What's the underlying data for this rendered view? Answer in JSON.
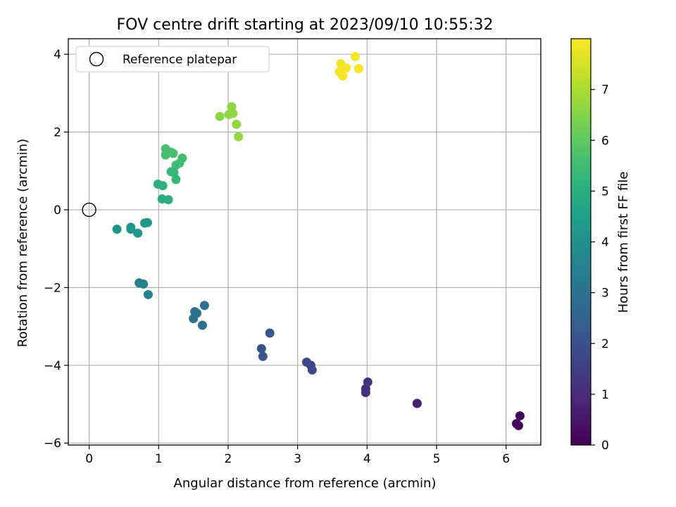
{
  "chart_data": {
    "type": "scatter",
    "title": "FOV centre drift starting at 2023/09/10 10:55:32",
    "xlabel": "Angular distance from reference (arcmin)",
    "ylabel": "Rotation from reference (arcmin)",
    "xlim": [
      -0.3,
      6.5
    ],
    "ylim": [
      -6.05,
      4.4
    ],
    "xticks": [
      0,
      1,
      2,
      3,
      4,
      5,
      6
    ],
    "yticks": [
      -6,
      -4,
      -2,
      0,
      2,
      4
    ],
    "grid": true,
    "legend": {
      "position": "top-left",
      "entries": [
        "Reference platepar"
      ]
    },
    "reference_point": {
      "x": 0,
      "y": 0,
      "label": "Reference platepar"
    },
    "colorbar": {
      "label": "Hours from first FF file",
      "min": 0,
      "max": 8,
      "ticks": [
        0,
        1,
        2,
        3,
        4,
        5,
        6,
        7
      ],
      "colormap": "viridis",
      "stops": [
        "#440154",
        "#482878",
        "#3e4989",
        "#31688e",
        "#26828e",
        "#1f9e89",
        "#35b779",
        "#6ece58",
        "#b5de2b",
        "#fde725"
      ]
    },
    "points": [
      {
        "x": 6.15,
        "y": -5.5,
        "hours": 0.02
      },
      {
        "x": 6.18,
        "y": -5.55,
        "hours": 0.05
      },
      {
        "x": 6.2,
        "y": -5.3,
        "hours": 0.1
      },
      {
        "x": 4.72,
        "y": -4.98,
        "hours": 0.7
      },
      {
        "x": 4.72,
        "y": -4.98,
        "hours": 0.72
      },
      {
        "x": 3.98,
        "y": -4.7,
        "hours": 1.1
      },
      {
        "x": 3.98,
        "y": -4.6,
        "hours": 1.13
      },
      {
        "x": 4.01,
        "y": -4.43,
        "hours": 1.17
      },
      {
        "x": 3.13,
        "y": -3.92,
        "hours": 1.7
      },
      {
        "x": 3.19,
        "y": -4.0,
        "hours": 1.72
      },
      {
        "x": 3.21,
        "y": -4.12,
        "hours": 1.74
      },
      {
        "x": 2.48,
        "y": -3.57,
        "hours": 2.1
      },
      {
        "x": 2.5,
        "y": -3.77,
        "hours": 2.12
      },
      {
        "x": 2.6,
        "y": -3.17,
        "hours": 2.14
      },
      {
        "x": 1.52,
        "y": -2.62,
        "hours": 2.9
      },
      {
        "x": 1.5,
        "y": -2.8,
        "hours": 2.92
      },
      {
        "x": 1.55,
        "y": -2.66,
        "hours": 2.94
      },
      {
        "x": 1.63,
        "y": -2.97,
        "hours": 2.96
      },
      {
        "x": 1.66,
        "y": -2.46,
        "hours": 2.98
      },
      {
        "x": 0.72,
        "y": -1.88,
        "hours": 3.5
      },
      {
        "x": 0.78,
        "y": -1.91,
        "hours": 3.52
      },
      {
        "x": 0.85,
        "y": -2.18,
        "hours": 3.55
      },
      {
        "x": 0.4,
        "y": -0.5,
        "hours": 4.1
      },
      {
        "x": 0.6,
        "y": -0.45,
        "hours": 4.15
      },
      {
        "x": 0.6,
        "y": -0.5,
        "hours": 4.17
      },
      {
        "x": 0.7,
        "y": -0.6,
        "hours": 4.2
      },
      {
        "x": 0.8,
        "y": -0.34,
        "hours": 4.25
      },
      {
        "x": 0.84,
        "y": -0.33,
        "hours": 4.27
      },
      {
        "x": 1.05,
        "y": 0.28,
        "hours": 5.0
      },
      {
        "x": 1.14,
        "y": 0.26,
        "hours": 5.02
      },
      {
        "x": 0.99,
        "y": 0.66,
        "hours": 5.05
      },
      {
        "x": 1.06,
        "y": 0.62,
        "hours": 5.07
      },
      {
        "x": 1.18,
        "y": 0.98,
        "hours": 5.3
      },
      {
        "x": 1.22,
        "y": 0.96,
        "hours": 5.32
      },
      {
        "x": 1.25,
        "y": 0.78,
        "hours": 5.34
      },
      {
        "x": 1.25,
        "y": 1.15,
        "hours": 5.5
      },
      {
        "x": 1.3,
        "y": 1.2,
        "hours": 5.52
      },
      {
        "x": 1.34,
        "y": 1.33,
        "hours": 5.54
      },
      {
        "x": 1.1,
        "y": 1.57,
        "hours": 5.6
      },
      {
        "x": 1.1,
        "y": 1.41,
        "hours": 5.62
      },
      {
        "x": 1.18,
        "y": 1.48,
        "hours": 5.64
      },
      {
        "x": 1.21,
        "y": 1.45,
        "hours": 5.66
      },
      {
        "x": 1.88,
        "y": 2.4,
        "hours": 6.6
      },
      {
        "x": 2.01,
        "y": 2.45,
        "hours": 6.62
      },
      {
        "x": 2.05,
        "y": 2.65,
        "hours": 6.64
      },
      {
        "x": 2.07,
        "y": 2.48,
        "hours": 6.66
      },
      {
        "x": 2.12,
        "y": 2.2,
        "hours": 6.68
      },
      {
        "x": 2.15,
        "y": 1.88,
        "hours": 6.7
      },
      {
        "x": 3.62,
        "y": 3.76,
        "hours": 7.85
      },
      {
        "x": 3.6,
        "y": 3.55,
        "hours": 7.87
      },
      {
        "x": 3.65,
        "y": 3.44,
        "hours": 7.89
      },
      {
        "x": 3.7,
        "y": 3.65,
        "hours": 7.91
      },
      {
        "x": 3.83,
        "y": 3.94,
        "hours": 7.93
      },
      {
        "x": 3.88,
        "y": 3.63,
        "hours": 7.95
      }
    ]
  }
}
